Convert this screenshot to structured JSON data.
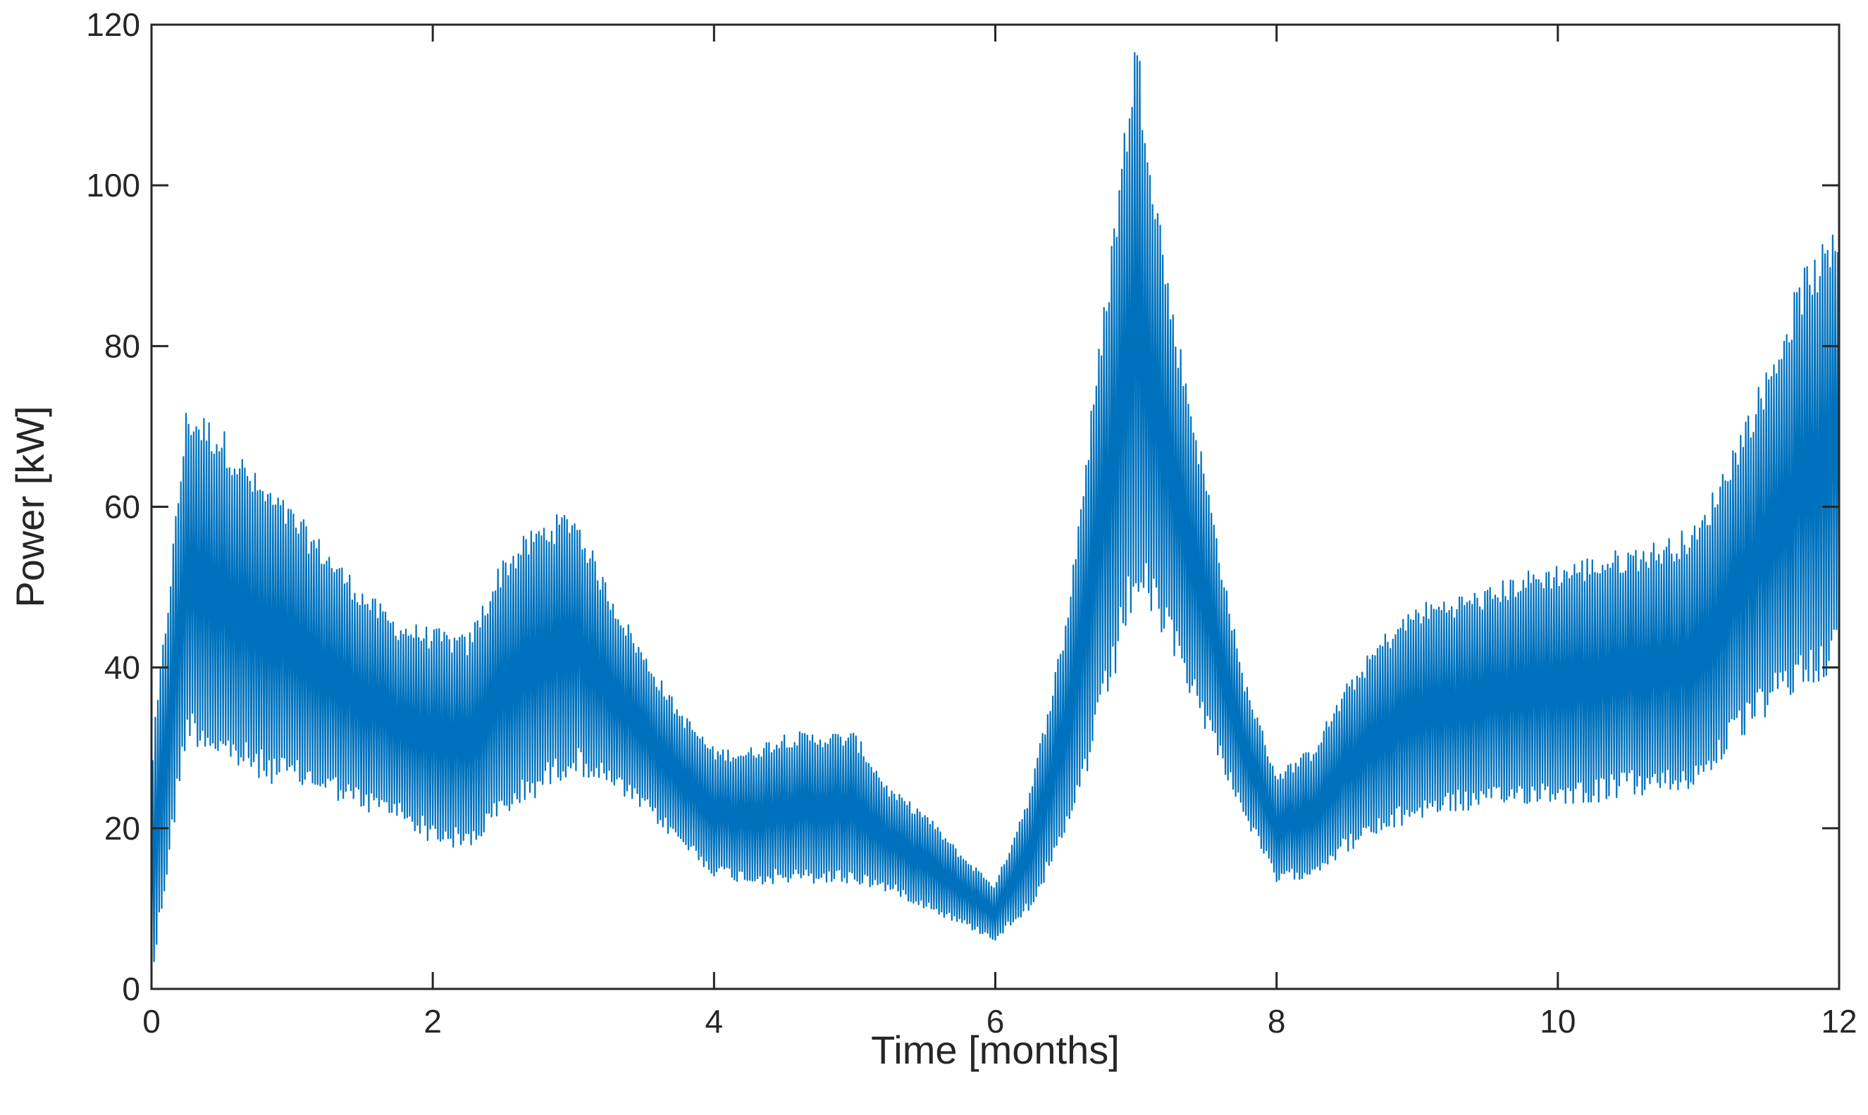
{
  "chart_data": {
    "type": "line",
    "title": "",
    "xlabel": "Time [months]",
    "ylabel": "Power [kW]",
    "xlim": [
      0,
      12
    ],
    "ylim": [
      0,
      120
    ],
    "xticks": [
      0,
      2,
      4,
      6,
      8,
      10,
      12
    ],
    "yticks": [
      0,
      20,
      40,
      60,
      80,
      100,
      120
    ],
    "x_tick_labels": [
      "0",
      "2",
      "4",
      "6",
      "8",
      "10",
      "12"
    ],
    "y_tick_labels": [
      "0",
      "20",
      "40",
      "60",
      "80",
      "100",
      "120"
    ],
    "grid": false,
    "legend": "none",
    "series": [
      {
        "color": "#0072BD",
        "x": [
          0.0,
          0.25,
          0.5,
          0.75,
          1.0,
          1.25,
          1.5,
          1.75,
          2.0,
          2.25,
          2.5,
          2.75,
          3.0,
          3.25,
          3.5,
          3.75,
          4.0,
          4.25,
          4.5,
          4.75,
          5.0,
          5.25,
          5.5,
          5.75,
          6.0,
          6.25,
          6.5,
          6.75,
          7.0,
          7.25,
          7.5,
          7.75,
          8.0,
          8.25,
          8.5,
          8.75,
          9.0,
          9.25,
          9.5,
          9.75,
          10.0,
          10.25,
          10.5,
          10.75,
          11.0,
          11.25,
          11.5,
          11.75,
          12.0
        ],
        "low": [
          0,
          31,
          28,
          26,
          25,
          24,
          22,
          21,
          18,
          17,
          21,
          24,
          27,
          25,
          22,
          18,
          14,
          13,
          13,
          13,
          13,
          12,
          10,
          8,
          6,
          10,
          18,
          32,
          48,
          42,
          32,
          22,
          13,
          14,
          17,
          19,
          21,
          22,
          22,
          23,
          23,
          23,
          24,
          24,
          25,
          30,
          34,
          37,
          40
        ],
        "high": [
          29,
          73,
          70,
          64,
          60,
          55,
          50,
          46,
          45,
          44,
          54,
          58,
          60,
          50,
          42,
          35,
          30,
          30,
          32,
          32,
          32,
          25,
          22,
          17,
          13,
          25,
          46,
          82,
          120,
          86,
          64,
          40,
          27,
          30,
          38,
          44,
          48,
          49,
          50,
          52,
          53,
          54,
          55,
          56,
          58,
          68,
          78,
          90,
          95
        ]
      }
    ]
  }
}
